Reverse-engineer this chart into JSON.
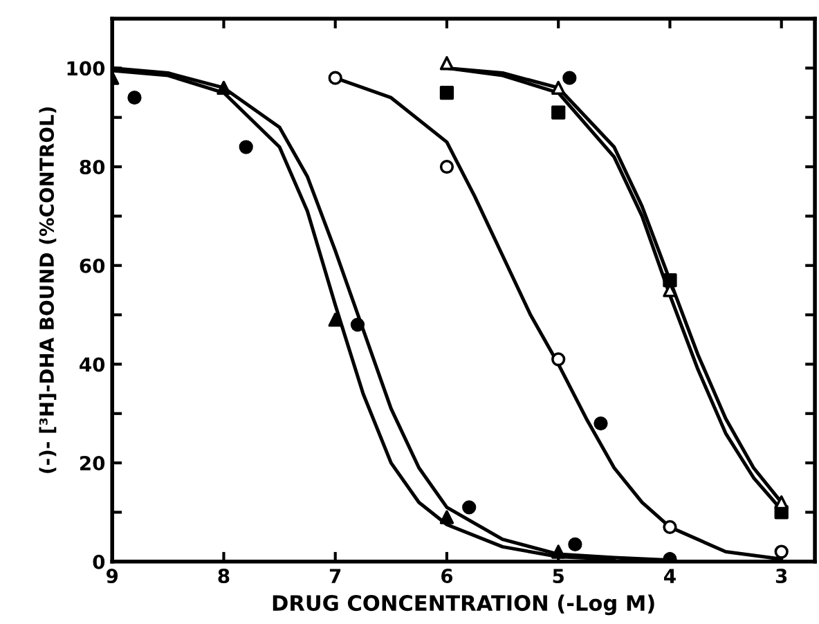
{
  "chart_data": {
    "type": "scatter",
    "xlabel": "DRUG CONCENTRATION (-Log M)",
    "ylabel": "(-)- [³H]-DHA BOUND (%CONTROL)",
    "xlim": [
      9,
      2.7
    ],
    "ylim": [
      0,
      110
    ],
    "xticks": [
      9,
      8,
      7,
      6,
      5,
      4,
      3
    ],
    "yticks": [
      0,
      {
        "value": 10,
        "label": null
      },
      20,
      {
        "value": 30,
        "label": null
      },
      40,
      {
        "value": 50,
        "label": null
      },
      60,
      {
        "value": 70,
        "label": null
      },
      80,
      {
        "value": 90,
        "label": null
      },
      100
    ],
    "grid": false,
    "legend": false,
    "series": [
      {
        "marker": "triangle",
        "color": "#000000",
        "x": [
          9,
          8,
          7,
          6,
          5
        ],
        "values": [
          98,
          96,
          49,
          9,
          2
        ]
      },
      {
        "marker": "circle",
        "color": "#000000",
        "x": [
          8.8,
          7.8,
          6.8,
          5.8,
          4.85
        ],
        "values": [
          94,
          84,
          48,
          11,
          3.5
        ]
      },
      {
        "marker": "circle",
        "color": "#ffffff",
        "x": [
          7,
          6,
          5,
          4,
          3
        ],
        "values": [
          98,
          80,
          41,
          7,
          2
        ]
      },
      {
        "marker": "triangle",
        "color": "#ffffff",
        "x": [
          6,
          5,
          4,
          3
        ],
        "values": [
          101,
          96,
          55,
          12
        ]
      },
      {
        "marker": "square",
        "color": "#000000",
        "x": [
          6,
          5,
          4,
          3
        ],
        "values": [
          95,
          91,
          57,
          10
        ]
      },
      {
        "marker": "circle",
        "color": "#000000",
        "x": [
          4.9,
          4.62,
          4
        ],
        "values": [
          98,
          28,
          0.5
        ]
      },
      {
        "type": "line",
        "color": "#000000",
        "x": [
          9,
          8.5,
          8,
          7.5,
          7.25,
          7,
          6.75,
          6.5,
          6.25,
          6,
          5.5,
          5,
          4.5
        ],
        "values": [
          99.5,
          98.5,
          95,
          84,
          71,
          52,
          34,
          20,
          12,
          7.5,
          3,
          1,
          0.5
        ]
      },
      {
        "type": "line",
        "color": "#000000",
        "x": [
          9,
          8.5,
          8,
          7.5,
          7.25,
          7,
          6.75,
          6.5,
          6.25,
          6,
          5.5,
          5,
          4.5,
          4
        ],
        "values": [
          100,
          99,
          96,
          88,
          78,
          63,
          47,
          31,
          19,
          11,
          4.5,
          1.5,
          0.8,
          0.3
        ]
      },
      {
        "type": "line",
        "color": "#000000",
        "x": [
          7,
          6.5,
          6,
          5.75,
          5.5,
          5.25,
          5,
          4.75,
          4.5,
          4.25,
          4,
          3.5,
          3
        ],
        "values": [
          98,
          94,
          85,
          74,
          62,
          50,
          40,
          29,
          19,
          12,
          7,
          2,
          0.5
        ]
      },
      {
        "type": "line",
        "color": "#000000",
        "x": [
          6,
          5.5,
          5,
          4.5,
          4.25,
          4,
          3.75,
          3.5,
          3.25,
          3
        ],
        "values": [
          100,
          99,
          96,
          84,
          72,
          57,
          42,
          29,
          19,
          12
        ]
      },
      {
        "type": "line",
        "color": "#000000",
        "x": [
          6,
          5.5,
          5,
          4.5,
          4.25,
          4,
          3.75,
          3.5,
          3.25,
          3
        ],
        "values": [
          100,
          98.5,
          95,
          82,
          70,
          54,
          39,
          26,
          17,
          10.5
        ]
      }
    ]
  }
}
